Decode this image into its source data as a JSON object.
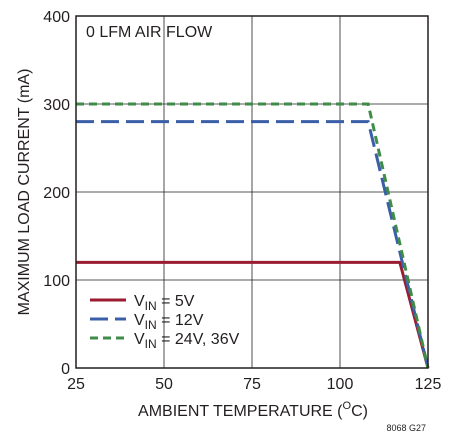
{
  "chart_data": {
    "type": "line",
    "annotation": "0 LFM AIR FLOW",
    "xlabel": "AMBIENT TEMPERATURE (",
    "xlabel_sup": "O",
    "xlabel_end": "C)",
    "ylabel": "MAXIMUM LOAD CURRENT (mA)",
    "xlim": [
      25,
      125
    ],
    "ylim": [
      0,
      400
    ],
    "xticks": [
      25,
      50,
      75,
      100,
      125
    ],
    "yticks": [
      0,
      100,
      200,
      300,
      400
    ],
    "grid": true,
    "legend_position": "bottom-left",
    "series": [
      {
        "name_main": "V",
        "name_sub": "IN",
        "name_rest": " = 5V",
        "color": "#9b1b30",
        "dash": "solid",
        "points": [
          [
            25,
            120
          ],
          [
            117,
            120
          ],
          [
            125,
            0
          ]
        ]
      },
      {
        "name_main": "V",
        "name_sub": "IN",
        "name_rest": " = 12V",
        "color": "#3a5fa8",
        "dash": "long-dash",
        "points": [
          [
            25,
            280
          ],
          [
            108,
            280
          ],
          [
            125,
            0
          ]
        ]
      },
      {
        "name_main": "V",
        "name_sub": "IN",
        "name_rest": " = 24V, 36V",
        "color": "#3f8c48",
        "dash": "short-dash",
        "points": [
          [
            25,
            300
          ],
          [
            108,
            300
          ],
          [
            125,
            0
          ]
        ]
      }
    ],
    "figure_id": "8068 G27"
  }
}
